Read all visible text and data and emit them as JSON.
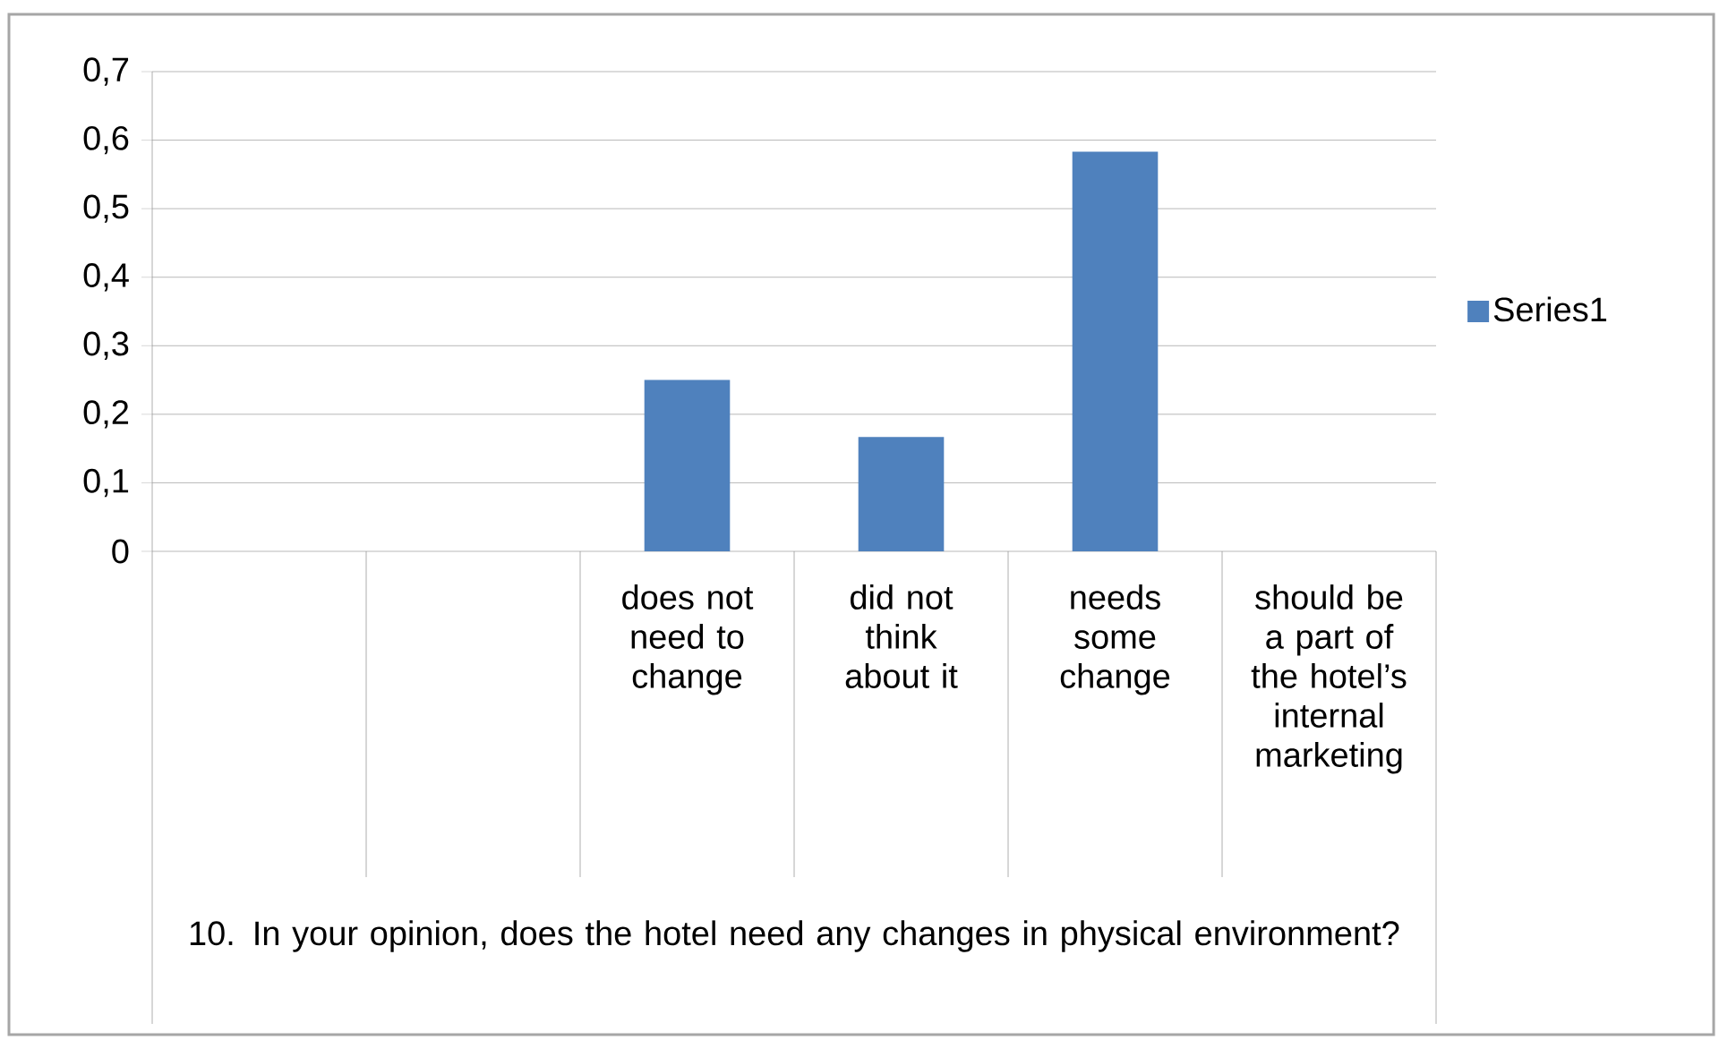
{
  "chart_data": {
    "type": "bar",
    "categories": [
      null,
      null,
      "does not need to change",
      "did not think about it",
      "needs some change",
      "should be a part of the hotel’s internal marketing"
    ],
    "series": [
      {
        "name": "Series1",
        "color": "#4f81bd",
        "values": [
          null,
          null,
          0.25,
          0.167,
          0.583,
          null
        ]
      }
    ],
    "xlabel": "10. In your opinion, does the hotel need any changes in physical environment?",
    "ylim": [
      0,
      0.7
    ],
    "yticks": [
      {
        "value": 0,
        "label": "0"
      },
      {
        "value": 0.1,
        "label": "0,1"
      },
      {
        "value": 0.2,
        "label": "0,2"
      },
      {
        "value": 0.3,
        "label": "0,3"
      },
      {
        "value": 0.4,
        "label": "0,4"
      },
      {
        "value": 0.5,
        "label": "0,5"
      },
      {
        "value": 0.6,
        "label": "0,6"
      },
      {
        "value": 0.7,
        "label": "0,7"
      }
    ],
    "grid": "y",
    "legend": "right"
  }
}
